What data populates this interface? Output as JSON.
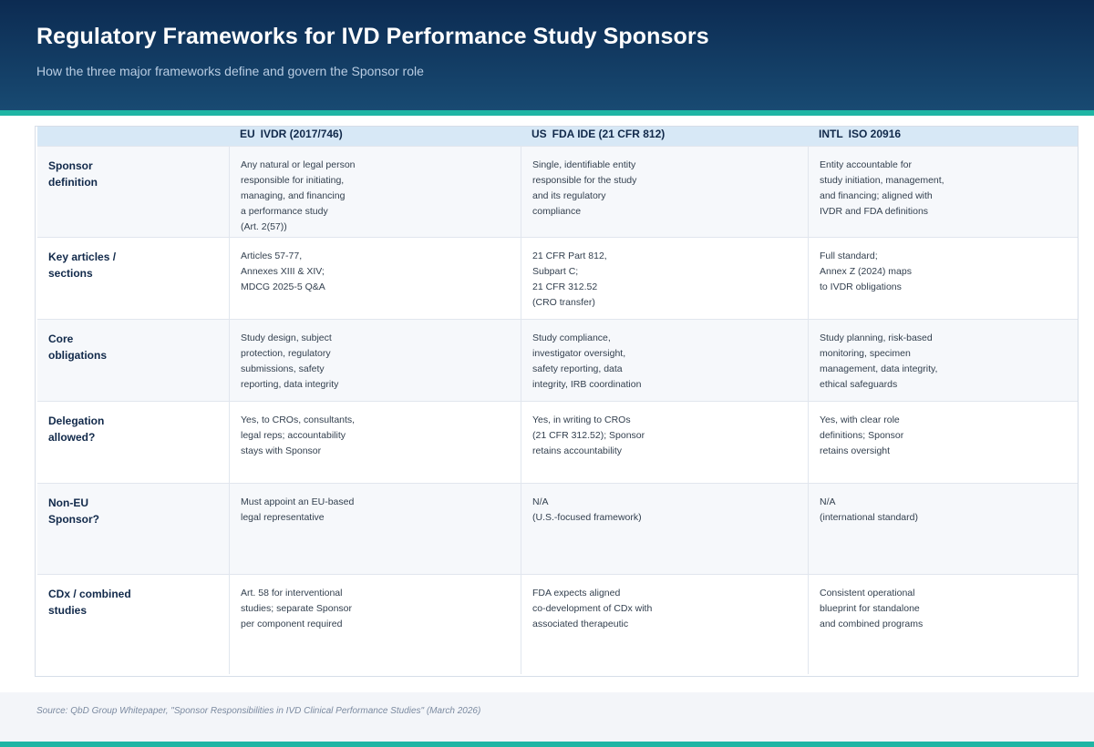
{
  "header": {
    "title": "Regulatory Frameworks for IVD Performance Study Sponsors",
    "subtitle": "How the three major frameworks define and govern the Sponsor role"
  },
  "table": {
    "columns": [
      {
        "tag": "EU",
        "name": "IVDR (2017/746)"
      },
      {
        "tag": "US",
        "name": "FDA IDE (21 CFR 812)"
      },
      {
        "tag": "INTL",
        "name": "ISO 20916"
      }
    ],
    "rows": [
      {
        "label": [
          "Sponsor",
          "definition"
        ],
        "eu": [
          "Any natural or legal person",
          "responsible for initiating,",
          "managing, and financing",
          "a performance study",
          "(Art. 2(57))"
        ],
        "us": [
          "Single, identifiable entity",
          "responsible for the study",
          "and its regulatory",
          "compliance"
        ],
        "intl": [
          "Entity accountable for",
          "study initiation, management,",
          "and financing; aligned with",
          "IVDR and FDA definitions"
        ]
      },
      {
        "label": [
          "Key articles /",
          "sections"
        ],
        "eu": [
          "Articles 57-77,",
          "Annexes XIII & XIV;",
          "MDCG 2025-5 Q&A"
        ],
        "us": [
          "21 CFR Part 812,",
          "Subpart C;",
          "21 CFR 312.52",
          "(CRO transfer)"
        ],
        "intl": [
          "Full standard;",
          "Annex Z (2024) maps",
          "to IVDR obligations"
        ]
      },
      {
        "label": [
          "Core",
          "obligations"
        ],
        "eu": [
          "Study design, subject",
          "protection, regulatory",
          "submissions, safety",
          "reporting, data integrity"
        ],
        "us": [
          "Study compliance,",
          "investigator oversight,",
          "safety reporting, data",
          "integrity, IRB coordination"
        ],
        "intl": [
          "Study planning, risk-based",
          "monitoring, specimen",
          "management, data integrity,",
          "ethical safeguards"
        ]
      },
      {
        "label": [
          "Delegation",
          "allowed?"
        ],
        "eu": [
          "Yes, to CROs, consultants,",
          "legal reps; accountability",
          "stays with Sponsor"
        ],
        "us": [
          "Yes, in writing to CROs",
          "(21 CFR 312.52); Sponsor",
          "retains accountability"
        ],
        "intl": [
          "Yes, with clear role",
          "definitions; Sponsor",
          "retains oversight"
        ]
      },
      {
        "label": [
          "Non-EU",
          "Sponsor?"
        ],
        "eu": [
          "Must appoint an EU-based",
          "legal representative"
        ],
        "us": [
          "N/A",
          "(U.S.-focused framework)"
        ],
        "intl": [
          "N/A",
          "(international standard)"
        ]
      },
      {
        "label": [
          "CDx / combined",
          "studies"
        ],
        "eu": [
          "Art. 58 for interventional",
          "studies; separate Sponsor",
          "per component required"
        ],
        "us": [
          "FDA expects aligned",
          "co-development of CDx with",
          "associated therapeutic"
        ],
        "intl": [
          "Consistent operational",
          "blueprint for standalone",
          "and combined programs"
        ]
      }
    ]
  },
  "footer": {
    "source": "Source: QbD Group Whitepaper, \"Sponsor Responsibilities in IVD Clinical Performance Studies\" (March 2026)"
  },
  "colors": {
    "header_dark": "#0c2b52",
    "accent_teal": "#1fb5a4",
    "table_header_bg": "#d7e8f6",
    "row_alt_bg": "#f6f8fb"
  }
}
